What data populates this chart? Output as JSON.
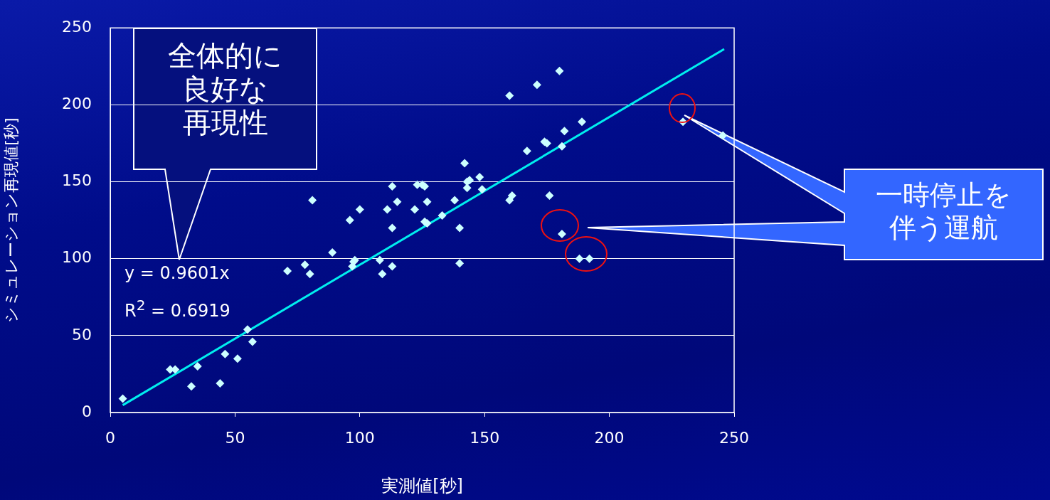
{
  "chart_data": {
    "type": "scatter",
    "xlabel": "実測値[秒]",
    "ylabel": "シミュレーション再現値[秒]",
    "xlim": [
      0,
      250
    ],
    "xticks": [
      0,
      50,
      100,
      150,
      200,
      250
    ],
    "ylim": [
      0,
      250
    ],
    "yticks": [
      0,
      50,
      100,
      150,
      200,
      250
    ],
    "grid": "y",
    "legend": false,
    "marker": "diamond",
    "series": [
      {
        "color": "#ccffff",
        "x": [
          5,
          24,
          26,
          32.5,
          35,
          44,
          46,
          51,
          55,
          57,
          71,
          78,
          80,
          81,
          89,
          96,
          97,
          97.5,
          98,
          100,
          108,
          109,
          111,
          113,
          113,
          113,
          115,
          122,
          123,
          125,
          126,
          126,
          127,
          127,
          133,
          138,
          140,
          140,
          142,
          143,
          143,
          144,
          148,
          149,
          160,
          160,
          161,
          167,
          171,
          174,
          175,
          176,
          180,
          181,
          181,
          182,
          189,
          188,
          192,
          229.5,
          245.5
        ],
        "values": [
          9,
          28,
          28,
          17,
          30,
          19,
          38,
          35,
          54,
          46,
          92,
          96,
          90,
          138,
          104,
          125,
          95,
          98,
          99,
          132,
          99,
          90,
          132,
          147,
          120,
          95,
          137,
          132,
          148,
          148,
          147,
          124,
          137,
          123,
          128,
          138,
          120,
          97,
          162,
          150,
          146,
          151,
          153,
          145,
          206,
          138,
          141,
          170,
          213,
          176,
          175,
          141,
          222,
          173,
          116,
          183,
          189,
          100,
          100,
          189,
          180
        ]
      },
      {
        "type": "line",
        "color": "#00eeee",
        "marker": "none",
        "x": [
          5,
          246
        ],
        "values": [
          4.8,
          236.2
        ]
      }
    ],
    "annotations": [
      "y = 0.9601x",
      "R$^{2}$ = 0.6919",
      "全体的に良好な再現性",
      "一時停止を伴う運航"
    ]
  }
}
